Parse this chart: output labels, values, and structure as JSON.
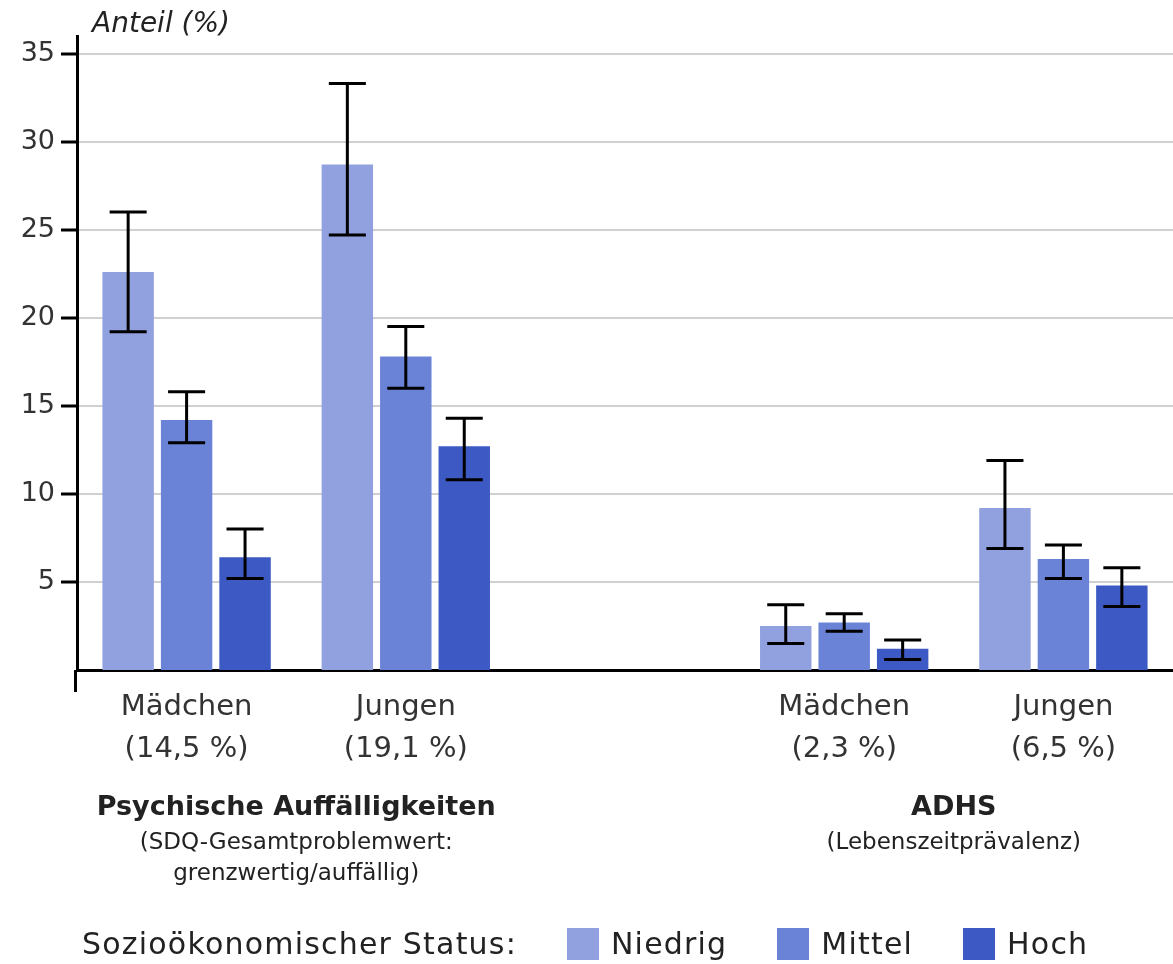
{
  "chart_data": {
    "type": "bar",
    "ylabel": "Anteil (%)",
    "legend_title": "Sozioökonomischer Status:",
    "legend": "bottom",
    "grid": "y",
    "categories": [
      "Mädchen\n(14,5 %)",
      "Jungen\n(19,1 %)",
      null,
      "Mädchen\n(2,3 %)",
      "Jungen\n(6,5 %)"
    ],
    "ylim": [
      0,
      36
    ],
    "yticks": [
      5,
      10,
      15,
      20,
      25,
      30,
      35
    ],
    "series": [
      {
        "name": "Niedrig",
        "color": "#91a1e0",
        "values": [
          22.6,
          28.7,
          null,
          2.5,
          9.2
        ],
        "errors": [
          [
            19.2,
            26.0
          ],
          [
            24.7,
            33.3
          ],
          null,
          [
            1.5,
            3.7
          ],
          [
            6.9,
            11.9
          ]
        ]
      },
      {
        "name": "Mittel",
        "color": "#6a83d6",
        "values": [
          14.2,
          17.8,
          null,
          2.7,
          6.3
        ],
        "errors": [
          [
            12.9,
            15.8
          ],
          [
            16.0,
            19.5
          ],
          null,
          [
            2.2,
            3.2
          ],
          [
            5.2,
            7.1
          ]
        ]
      },
      {
        "name": "Hoch",
        "color": "#3d59c4",
        "values": [
          6.4,
          12.7,
          null,
          1.2,
          4.8
        ],
        "errors": [
          [
            5.2,
            8.0
          ],
          [
            10.8,
            14.3
          ],
          null,
          [
            0.6,
            1.7
          ],
          [
            3.6,
            5.8
          ]
        ]
      }
    ],
    "annotations": [
      "Psychische Auffälligkeiten",
      "(SDQ-Gesamtproblemwert:\ngrenzwertig/auffällig)",
      "ADHS",
      "(Lebenszeitprävalenz)"
    ]
  }
}
